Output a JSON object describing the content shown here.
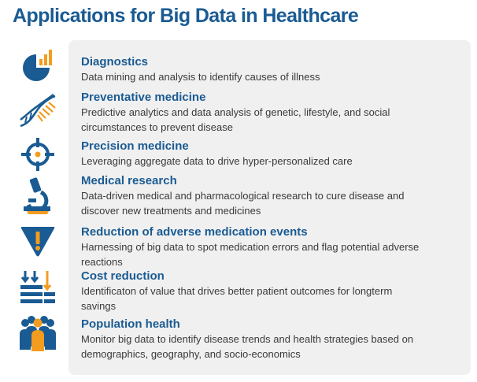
{
  "title": "Applications for Big Data in Healthcare",
  "colors": {
    "blue": "#1a5b93",
    "orange": "#f39c1f",
    "panel": "#f0f0f0"
  },
  "items": [
    {
      "icon": "pie-chart-icon",
      "heading": "Diagnostics",
      "desc": "Data mining and analysis to identify causes of illness"
    },
    {
      "icon": "dna-icon",
      "heading": "Preventative medicine",
      "desc": "Predictive analytics and data analysis of genetic, lifestyle, and social circumstances to prevent disease"
    },
    {
      "icon": "crosshair-icon",
      "heading": "Precision medicine",
      "desc": "Leveraging aggregate data to drive hyper-personalized care"
    },
    {
      "icon": "microscope-icon",
      "heading": "Medical research",
      "desc": "Data-driven medical and pharmacological research to cure disease and discover new treatments and medicines"
    },
    {
      "icon": "warning-icon",
      "heading": "Reduction of adverse medication events",
      "desc": "Harnessing of big data to spot medication errors and flag potential adverse reactions"
    },
    {
      "icon": "cost-reduction-icon",
      "heading": "Cost reduction",
      "desc": "Identificaton of value that drives better patient outcomes for longterm savings"
    },
    {
      "icon": "population-icon",
      "heading": "Population health",
      "desc": "Monitor big data to identify disease trends and health strategies based on demographics, geography, and socio-economics"
    }
  ]
}
